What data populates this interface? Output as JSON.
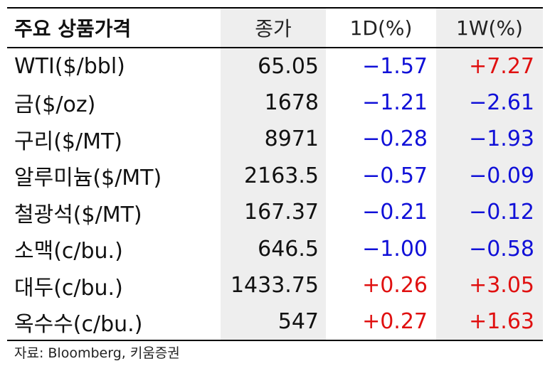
{
  "header": {
    "name": "주요 상품가격",
    "close": "종가",
    "d1": "1D(%)",
    "w1": "1W(%)"
  },
  "rows": [
    {
      "name": "WTI($/bbl)",
      "close": "65.05",
      "d1": "−1.57",
      "w1": "+7.27"
    },
    {
      "name": "금($/oz)",
      "close": "1678",
      "d1": "−1.21",
      "w1": "−2.61"
    },
    {
      "name": "구리($/MT)",
      "close": "8971",
      "d1": "−0.28",
      "w1": "−1.93"
    },
    {
      "name": "알루미늄($/MT)",
      "close": "2163.5",
      "d1": "−0.57",
      "w1": "−0.09"
    },
    {
      "name": "철광석($/MT)",
      "close": "167.37",
      "d1": "−0.21",
      "w1": "−0.12"
    },
    {
      "name": "소맥(c/bu.)",
      "close": "646.5",
      "d1": "−1.00",
      "w1": "−0.58"
    },
    {
      "name": "대두(c/bu.)",
      "close": "1433.75",
      "d1": "+0.26",
      "w1": "+3.05"
    },
    {
      "name": "옥수수(c/bu.)",
      "close": "547",
      "d1": "+0.27",
      "w1": "+1.63"
    }
  ],
  "colors": {
    "negative": "#1010d8",
    "positive": "#e01010",
    "shade": "#eeeeee"
  },
  "source": "자료: Bloomberg, 키움증권"
}
